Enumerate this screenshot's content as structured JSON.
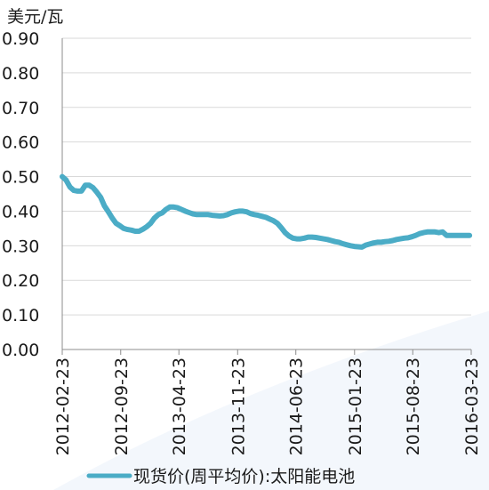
{
  "chart_data": {
    "type": "line",
    "ylabel": "美元/瓦",
    "ylim": [
      0,
      0.9
    ],
    "yticks": [
      "0.00",
      "0.10",
      "0.20",
      "0.30",
      "0.40",
      "0.50",
      "0.60",
      "0.70",
      "0.80",
      "0.90"
    ],
    "xlim": [
      "2012-02-23",
      "2016-03-23"
    ],
    "xticks": [
      "2012-02-23",
      "2012-09-23",
      "2013-04-23",
      "2013-11-23",
      "2014-06-23",
      "2015-01-23",
      "2015-08-23",
      "2016-03-23"
    ],
    "grid": "horizontal",
    "legend_position": "bottom",
    "series": [
      {
        "name": "现货价(周平均价):太阳能电池",
        "color": "#4bacc6",
        "x": [
          "2012-02-23",
          "2012-03-08",
          "2012-03-22",
          "2012-04-05",
          "2012-04-19",
          "2012-05-03",
          "2012-05-17",
          "2012-05-31",
          "2012-06-14",
          "2012-06-28",
          "2012-07-12",
          "2012-07-26",
          "2012-08-09",
          "2012-08-23",
          "2012-09-06",
          "2012-09-20",
          "2012-10-04",
          "2012-10-18",
          "2012-11-01",
          "2012-11-15",
          "2012-11-29",
          "2012-12-13",
          "2012-12-27",
          "2013-01-10",
          "2013-01-24",
          "2013-02-07",
          "2013-02-21",
          "2013-03-07",
          "2013-03-21",
          "2013-04-04",
          "2013-04-18",
          "2013-05-02",
          "2013-05-16",
          "2013-05-30",
          "2013-06-13",
          "2013-06-27",
          "2013-07-11",
          "2013-07-25",
          "2013-08-08",
          "2013-08-22",
          "2013-09-05",
          "2013-09-19",
          "2013-10-03",
          "2013-10-17",
          "2013-10-31",
          "2013-11-14",
          "2013-11-28",
          "2013-12-12",
          "2013-12-26",
          "2014-01-09",
          "2014-01-23",
          "2014-02-06",
          "2014-02-20",
          "2014-03-06",
          "2014-03-20",
          "2014-04-03",
          "2014-04-17",
          "2014-05-01",
          "2014-05-15",
          "2014-05-29",
          "2014-06-12",
          "2014-06-26",
          "2014-07-10",
          "2014-07-24",
          "2014-08-07",
          "2014-08-21",
          "2014-09-04",
          "2014-09-18",
          "2014-10-02",
          "2014-10-16",
          "2014-10-30",
          "2014-11-13",
          "2014-11-27",
          "2014-12-11",
          "2014-12-25",
          "2015-01-08",
          "2015-01-22",
          "2015-02-05",
          "2015-02-19",
          "2015-03-05",
          "2015-03-19",
          "2015-04-02",
          "2015-04-16",
          "2015-04-30",
          "2015-05-14",
          "2015-05-28",
          "2015-06-11",
          "2015-06-25",
          "2015-07-09",
          "2015-07-23",
          "2015-08-06",
          "2015-08-20",
          "2015-09-03",
          "2015-09-17",
          "2015-10-01",
          "2015-10-15",
          "2015-10-29",
          "2015-11-12",
          "2015-11-26",
          "2015-12-10",
          "2015-12-24",
          "2016-01-07",
          "2016-01-21",
          "2016-02-04",
          "2016-02-18",
          "2016-03-03",
          "2016-03-17"
        ],
        "y": [
          0.5,
          0.49,
          0.47,
          0.46,
          0.458,
          0.458,
          0.475,
          0.475,
          0.468,
          0.455,
          0.44,
          0.415,
          0.398,
          0.38,
          0.365,
          0.358,
          0.35,
          0.347,
          0.345,
          0.342,
          0.342,
          0.348,
          0.355,
          0.365,
          0.38,
          0.39,
          0.395,
          0.405,
          0.412,
          0.412,
          0.41,
          0.405,
          0.4,
          0.396,
          0.392,
          0.39,
          0.39,
          0.39,
          0.39,
          0.388,
          0.387,
          0.386,
          0.387,
          0.39,
          0.395,
          0.398,
          0.4,
          0.4,
          0.398,
          0.393,
          0.39,
          0.388,
          0.385,
          0.382,
          0.377,
          0.372,
          0.365,
          0.352,
          0.338,
          0.328,
          0.322,
          0.32,
          0.32,
          0.322,
          0.325,
          0.325,
          0.324,
          0.322,
          0.32,
          0.318,
          0.315,
          0.312,
          0.31,
          0.306,
          0.303,
          0.3,
          0.298,
          0.297,
          0.296,
          0.302,
          0.305,
          0.308,
          0.31,
          0.31,
          0.312,
          0.313,
          0.315,
          0.318,
          0.32,
          0.322,
          0.323,
          0.326,
          0.33,
          0.335,
          0.338,
          0.34,
          0.34,
          0.34,
          0.338,
          0.34,
          0.33,
          0.33,
          0.33,
          0.33,
          0.33,
          0.33,
          0.33
        ]
      }
    ]
  }
}
